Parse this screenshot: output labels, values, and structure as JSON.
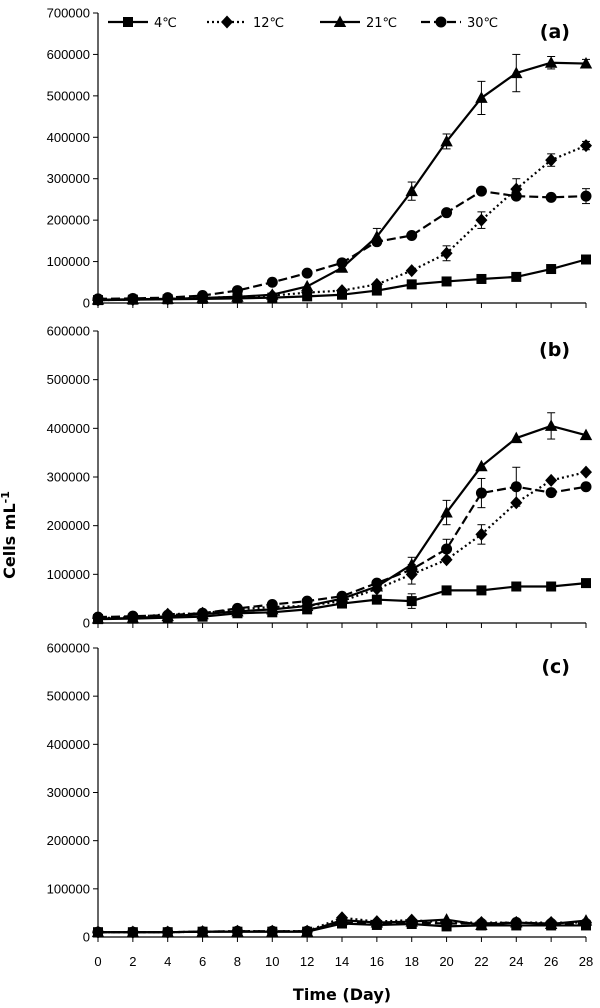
{
  "chart_data": {
    "type": "line",
    "xlabel": "Time (Day)",
    "ylabel_main": "Cells mL",
    "ylabel_sup": "-1",
    "x": [
      0,
      2,
      4,
      6,
      8,
      10,
      12,
      14,
      16,
      18,
      20,
      22,
      24,
      26,
      28
    ],
    "x_ticks": [
      "0",
      "2",
      "4",
      "6",
      "8",
      "10",
      "12",
      "14",
      "16",
      "18",
      "20",
      "22",
      "24",
      "26",
      "28"
    ],
    "legend": [
      "4℃",
      "12℃",
      "21℃",
      "30℃"
    ],
    "legend_placement": "top",
    "grid": false,
    "panels": [
      {
        "label": "(a)",
        "ylim": [
          0,
          700000
        ],
        "y_ticks": [
          "0",
          "100000",
          "200000",
          "300000",
          "400000",
          "500000",
          "600000",
          "700000"
        ],
        "series": [
          {
            "name": "4℃",
            "marker": "square",
            "line": "solid",
            "values": [
              7000,
              8000,
              9000,
              10000,
              11000,
              13000,
              16000,
              20000,
              30000,
              45000,
              52000,
              58000,
              63000,
              82000,
              105000
            ],
            "errors": [
              0,
              0,
              0,
              0,
              0,
              0,
              0,
              0,
              0,
              0,
              0,
              0,
              0,
              0,
              0
            ]
          },
          {
            "name": "12℃",
            "marker": "diamond",
            "line": "dotted",
            "values": [
              7000,
              8000,
              10000,
              12000,
              15000,
              18000,
              25000,
              30000,
              45000,
              78000,
              120000,
              200000,
              275000,
              345000,
              380000
            ],
            "errors": [
              0,
              0,
              0,
              0,
              0,
              0,
              0,
              0,
              0,
              0,
              18000,
              20000,
              25000,
              15000,
              10000
            ]
          },
          {
            "name": "21℃",
            "marker": "triangle",
            "line": "solid",
            "values": [
              8000,
              9000,
              10000,
              12000,
              15000,
              20000,
              40000,
              85000,
              160000,
              270000,
              390000,
              495000,
              555000,
              580000,
              578000
            ],
            "errors": [
              0,
              0,
              0,
              0,
              0,
              0,
              0,
              0,
              20000,
              22000,
              18000,
              40000,
              45000,
              15000,
              10000
            ]
          },
          {
            "name": "30℃",
            "marker": "circle",
            "line": "dashed",
            "values": [
              10000,
              11000,
              13000,
              18000,
              30000,
              50000,
              72000,
              97000,
              148000,
              163000,
              218000,
              270000,
              258000,
              255000,
              258000
            ],
            "errors": [
              0,
              0,
              0,
              0,
              0,
              0,
              0,
              0,
              0,
              0,
              0,
              0,
              0,
              0,
              18000
            ]
          }
        ]
      },
      {
        "label": "(b)",
        "ylim": [
          0,
          600000
        ],
        "y_ticks": [
          "0",
          "100000",
          "200000",
          "300000",
          "400000",
          "500000",
          "600000"
        ],
        "series": [
          {
            "name": "4℃",
            "marker": "square",
            "line": "solid",
            "values": [
              8000,
              9000,
              11000,
              13000,
              20000,
              22000,
              28000,
              40000,
              48000,
              45000,
              67000,
              67000,
              75000,
              75000,
              82000
            ],
            "errors": [
              0,
              0,
              0,
              0,
              0,
              0,
              0,
              0,
              0,
              15000,
              0,
              0,
              0,
              0,
              0
            ]
          },
          {
            "name": "12℃",
            "marker": "diamond",
            "line": "dotted",
            "values": [
              10000,
              12000,
              18000,
              20000,
              28000,
              33000,
              35000,
              45000,
              70000,
              100000,
              130000,
              182000,
              247000,
              293000,
              310000
            ],
            "errors": [
              0,
              0,
              0,
              0,
              0,
              0,
              0,
              0,
              0,
              20000,
              0,
              20000,
              0,
              0,
              0
            ]
          },
          {
            "name": "21℃",
            "marker": "triangle",
            "line": "solid",
            "values": [
              9000,
              10000,
              14000,
              18000,
              24000,
              28000,
              35000,
              50000,
              75000,
              120000,
              227000,
              322000,
              380000,
              405000,
              386000
            ],
            "errors": [
              0,
              0,
              0,
              0,
              0,
              0,
              0,
              0,
              0,
              15000,
              25000,
              0,
              0,
              27000,
              0
            ]
          },
          {
            "name": "30℃",
            "marker": "circle",
            "line": "dashed",
            "values": [
              12000,
              14000,
              16000,
              20000,
              30000,
              38000,
              45000,
              55000,
              82000,
              110000,
              152000,
              267000,
              280000,
              268000,
              280000
            ],
            "errors": [
              0,
              0,
              0,
              0,
              0,
              0,
              0,
              0,
              0,
              0,
              20000,
              30000,
              40000,
              0,
              0
            ]
          }
        ]
      },
      {
        "label": "(c)",
        "ylim": [
          0,
          600000
        ],
        "y_ticks": [
          "0",
          "100000",
          "200000",
          "300000",
          "400000",
          "500000",
          "600000"
        ],
        "series": [
          {
            "name": "4℃",
            "marker": "square",
            "line": "solid",
            "values": [
              10000,
              10000,
              10000,
              11000,
              11000,
              11000,
              11000,
              28000,
              25000,
              27000,
              22000,
              24000,
              24000,
              24000,
              24000
            ],
            "errors": [
              0,
              0,
              0,
              0,
              0,
              0,
              0,
              0,
              0,
              0,
              0,
              0,
              0,
              0,
              0
            ]
          },
          {
            "name": "12℃",
            "marker": "diamond",
            "line": "dotted",
            "values": [
              10000,
              10000,
              10000,
              11000,
              12000,
              12000,
              12000,
              40000,
              32000,
              35000,
              30000,
              30000,
              30000,
              30000,
              30000
            ],
            "errors": [
              0,
              0,
              0,
              0,
              0,
              0,
              0,
              0,
              0,
              0,
              0,
              0,
              0,
              0,
              0
            ]
          },
          {
            "name": "21℃",
            "marker": "triangle",
            "line": "solid",
            "values": [
              10000,
              10000,
              10000,
              11000,
              11000,
              11000,
              11000,
              35000,
              30000,
              32000,
              36000,
              25000,
              30000,
              27000,
              34000
            ],
            "errors": [
              0,
              0,
              0,
              0,
              0,
              0,
              0,
              0,
              0,
              0,
              0,
              0,
              0,
              0,
              0
            ]
          },
          {
            "name": "30℃",
            "marker": "circle",
            "line": "dashed",
            "values": [
              10000,
              10000,
              10000,
              11000,
              12000,
              12000,
              12000,
              30000,
              28000,
              30000,
              28000,
              28000,
              30000,
              28000,
              28000
            ],
            "errors": [
              0,
              0,
              0,
              0,
              0,
              0,
              0,
              0,
              0,
              0,
              0,
              0,
              0,
              0,
              0
            ]
          }
        ]
      }
    ]
  }
}
